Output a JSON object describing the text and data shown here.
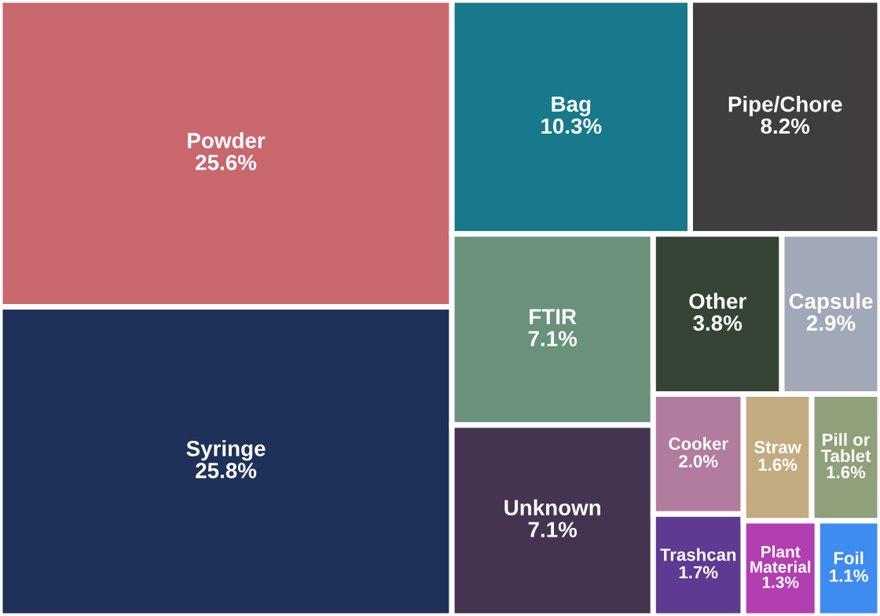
{
  "chart_data": {
    "type": "other",
    "categories": [
      "Powder",
      "Syringe",
      "Bag",
      "Pipe/Chore",
      "FTIR",
      "Unknown",
      "Other",
      "Capsule",
      "Cooker",
      "Trashcan",
      "Straw",
      "Pill or Tablet",
      "Plant Material",
      "Foil"
    ],
    "values": [
      25.6,
      25.8,
      10.3,
      8.2,
      7.1,
      7.1,
      3.8,
      2.9,
      2.0,
      1.7,
      1.6,
      1.6,
      1.3,
      1.1
    ],
    "value_labels": [
      "25.6%",
      "25.8%",
      "10.3%",
      "8.2%",
      "7.1%",
      "7.1%",
      "3.8%",
      "2.9%",
      "2.0%",
      "1.7%",
      "1.6%",
      "1.6%",
      "1.3%",
      "1.1%"
    ],
    "colors": [
      "#c9676f",
      "#1f3158",
      "#17798a",
      "#3f3d3e",
      "#6a917a",
      "#45344f",
      "#364436",
      "#a3a8b8",
      "#b17c9e",
      "#5e3a92",
      "#c3ab80",
      "#8fa07a",
      "#b13fb1",
      "#3f8cf0"
    ]
  }
}
